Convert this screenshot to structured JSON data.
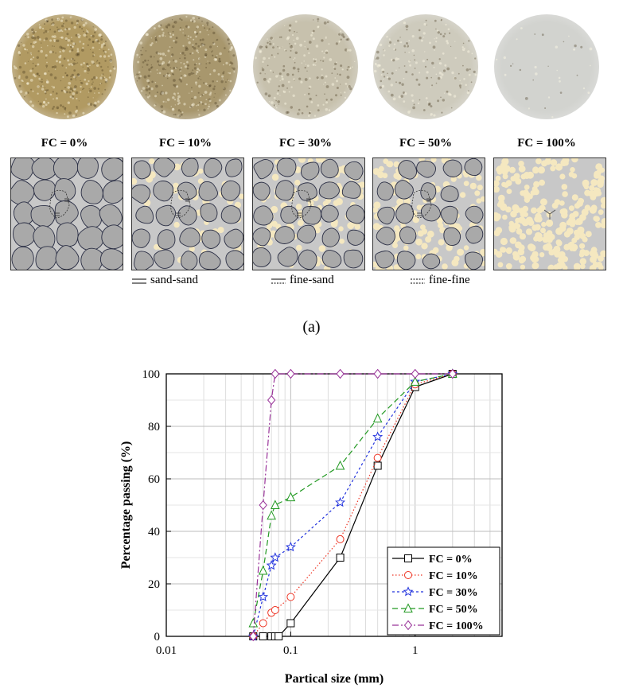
{
  "panel_a": {
    "samples": [
      {
        "label": "FC = 0%",
        "tone": "#b19a62"
      },
      {
        "label": "FC = 10%",
        "tone": "#a8976d"
      },
      {
        "label": "FC = 30%",
        "tone": "#c7c1ad"
      },
      {
        "label": "FC = 50%",
        "tone": "#cecbbd"
      },
      {
        "label": "FC = 100%",
        "tone": "#d2d3cf"
      }
    ],
    "contact_legend": [
      "sand-sand",
      "fine-sand",
      "fine-fine"
    ],
    "panel_label": "(a)"
  },
  "colors": {
    "sand": "#a9a9a9",
    "fines": "#f5e8c0",
    "matrix": "#c8c8c8"
  },
  "chart_data": {
    "type": "line",
    "x_scale": "log",
    "xlabel": "Partical size (mm)",
    "ylabel": "Percentage passing (%)",
    "xlim": [
      0.01,
      5
    ],
    "ylim": [
      0,
      100
    ],
    "xticks": [
      0.01,
      0.1,
      1
    ],
    "xtick_labels": [
      "0.01",
      "0.1",
      "1"
    ],
    "yticks": [
      0,
      20,
      40,
      60,
      80,
      100
    ],
    "grid": true,
    "legend_position": "bottom-right",
    "series": [
      {
        "name": "FC = 0%",
        "color": "#000000",
        "dash": "",
        "marker": "square",
        "points": [
          [
            0.05,
            0
          ],
          [
            0.06,
            0
          ],
          [
            0.07,
            0
          ],
          [
            0.075,
            0
          ],
          [
            0.08,
            0
          ],
          [
            0.1,
            5
          ],
          [
            0.25,
            30
          ],
          [
            0.5,
            65
          ],
          [
            1,
            95
          ],
          [
            2,
            100
          ]
        ]
      },
      {
        "name": "FC = 10%",
        "color": "#ee3322",
        "dash": "1.5 2.5",
        "marker": "circle",
        "points": [
          [
            0.05,
            0
          ],
          [
            0.06,
            5
          ],
          [
            0.07,
            9
          ],
          [
            0.075,
            10
          ],
          [
            0.1,
            15
          ],
          [
            0.25,
            37
          ],
          [
            0.5,
            68
          ],
          [
            1,
            96
          ],
          [
            2,
            100
          ]
        ]
      },
      {
        "name": "FC = 30%",
        "color": "#2233dd",
        "dash": "3 3",
        "marker": "star",
        "points": [
          [
            0.05,
            0
          ],
          [
            0.06,
            15
          ],
          [
            0.07,
            27
          ],
          [
            0.075,
            30
          ],
          [
            0.1,
            34
          ],
          [
            0.25,
            51
          ],
          [
            0.5,
            76
          ],
          [
            1,
            97
          ],
          [
            2,
            100
          ]
        ]
      },
      {
        "name": "FC = 50%",
        "color": "#229922",
        "dash": "7 4",
        "marker": "triangle",
        "points": [
          [
            0.05,
            5
          ],
          [
            0.06,
            25
          ],
          [
            0.07,
            46
          ],
          [
            0.075,
            50
          ],
          [
            0.1,
            53
          ],
          [
            0.25,
            65
          ],
          [
            0.5,
            83
          ],
          [
            1,
            97
          ],
          [
            2,
            100
          ]
        ]
      },
      {
        "name": "FC = 100%",
        "color": "#993399",
        "dash": "8 3 2 3",
        "marker": "diamond",
        "points": [
          [
            0.05,
            0
          ],
          [
            0.06,
            50
          ],
          [
            0.07,
            90
          ],
          [
            0.075,
            100
          ],
          [
            0.1,
            100
          ],
          [
            0.25,
            100
          ],
          [
            0.5,
            100
          ],
          [
            1,
            100
          ],
          [
            2,
            100
          ]
        ]
      }
    ]
  }
}
